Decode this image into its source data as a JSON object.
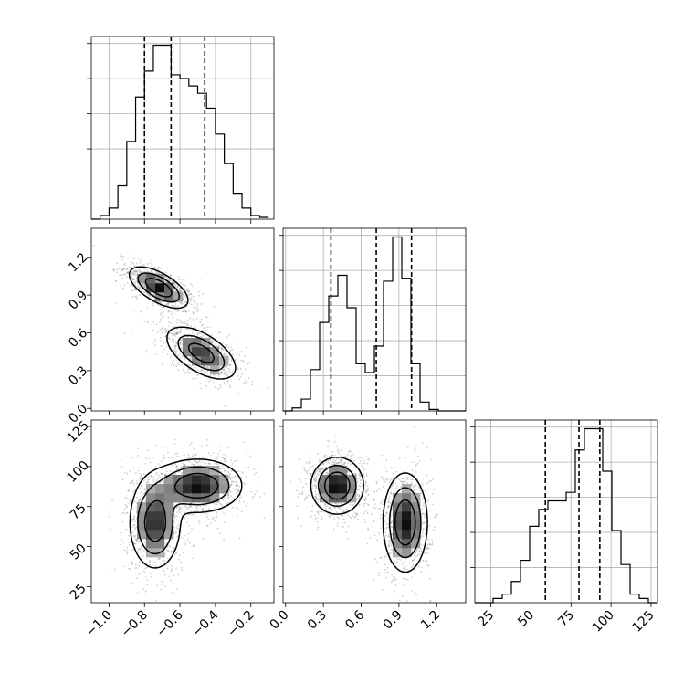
{
  "chart_data": {
    "type": "corner",
    "grid": true,
    "parameters": [
      {
        "range": [
          -1.1,
          -0.07
        ],
        "ticks": [
          -1.0,
          -0.8,
          -0.6,
          -0.4,
          -0.2
        ],
        "tick_labels": [
          "−1.0",
          "−0.8",
          "−0.6",
          "−0.4",
          "−0.2"
        ],
        "quantiles": [
          -0.8,
          -0.65,
          -0.46
        ],
        "hist": {
          "edges_start": -1.1,
          "bin_width": 0.05,
          "counts": [
            0,
            1,
            3,
            9,
            21,
            33,
            40,
            47,
            47,
            39,
            38,
            36,
            34,
            30,
            23,
            15,
            7,
            3,
            1,
            0.5
          ]
        }
      },
      {
        "range": [
          -0.02,
          1.43
        ],
        "ticks": [
          0.0,
          0.3,
          0.6,
          0.9,
          1.2
        ],
        "tick_labels": [
          "0.0",
          "0.3",
          "0.6",
          "0.9",
          "1.2"
        ],
        "quantiles": [
          0.36,
          0.72,
          1.0
        ],
        "hist": {
          "edges_start": -0.02,
          "bin_width": 0.0725,
          "counts": [
            0,
            1,
            4,
            14,
            30,
            39,
            46,
            35,
            16,
            13,
            22,
            44,
            59,
            45,
            16,
            3,
            0.5,
            0,
            0,
            0
          ]
        }
      },
      {
        "range": [
          15,
          129
        ],
        "ticks": [
          25,
          50,
          75,
          100,
          125
        ],
        "tick_labels": [
          "25",
          "50",
          "75",
          "100",
          "125"
        ],
        "quantiles": [
          59,
          80,
          93
        ],
        "hist": {
          "edges_start": 15,
          "bin_width": 5.7,
          "counts": [
            0,
            0,
            1,
            2,
            5,
            10,
            18,
            22,
            24,
            24,
            26,
            36,
            41,
            41,
            31,
            17,
            9,
            2,
            1,
            0
          ]
        }
      }
    ],
    "pair_plots": [
      {
        "x_param": 0,
        "y_param": 1,
        "modes": [
          {
            "center": [
              -0.72,
              0.96
            ],
            "axes": [
              0.09,
              0.055
            ],
            "angle_deg": -30,
            "weight": 1.0
          },
          {
            "center": [
              -0.48,
              0.44
            ],
            "axes": [
              0.11,
              0.075
            ],
            "angle_deg": -32,
            "weight": 0.85
          }
        ]
      },
      {
        "x_param": 0,
        "y_param": 2,
        "modes": [
          {
            "center": [
              -0.74,
              65
            ],
            "axes": [
              0.07,
              14
            ],
            "angle_deg": 0,
            "weight": 0.9
          },
          {
            "center": [
              -0.5,
              88
            ],
            "axes": [
              0.12,
              8
            ],
            "angle_deg": 0,
            "weight": 1.0
          }
        ]
      },
      {
        "x_param": 1,
        "y_param": 2,
        "modes": [
          {
            "center": [
              0.41,
              88
            ],
            "axes": [
              0.1,
              8.5
            ],
            "angle_deg": 0,
            "weight": 1.0
          },
          {
            "center": [
              0.95,
              65
            ],
            "axes": [
              0.085,
              15
            ],
            "angle_deg": 0,
            "weight": 0.95
          }
        ]
      }
    ],
    "contour_levels": [
      0.12,
      0.35,
      0.65
    ]
  }
}
